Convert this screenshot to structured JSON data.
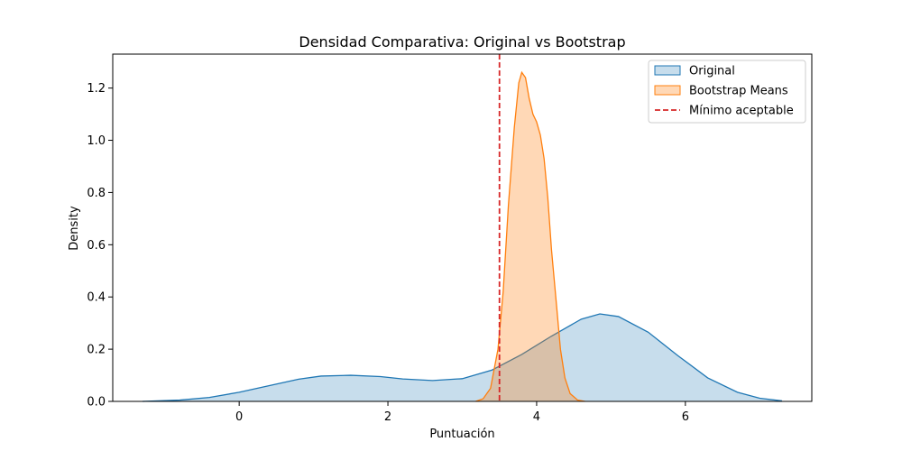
{
  "chart_data": {
    "type": "area",
    "title": "Densidad Comparativa: Original vs Bootstrap",
    "xlabel": "Puntuación",
    "ylabel": "Density",
    "xlim": [
      -1.7,
      7.7
    ],
    "ylim": [
      0,
      1.33
    ],
    "xticks": [
      0,
      2,
      4,
      6
    ],
    "yticks": [
      0.0,
      0.2,
      0.4,
      0.6,
      0.8,
      1.0,
      1.2
    ],
    "xtick_labels": [
      "0",
      "2",
      "4",
      "6"
    ],
    "ytick_labels": [
      "0.0",
      "0.2",
      "0.4",
      "0.6",
      "0.8",
      "1.0",
      "1.2"
    ],
    "grid": false,
    "legend_position": "top-right",
    "series": [
      {
        "name": "Original",
        "color": "#1f77b4",
        "fill_opacity": 0.25,
        "x": [
          -1.3,
          -0.8,
          -0.4,
          0.0,
          0.4,
          0.8,
          1.1,
          1.5,
          1.9,
          2.2,
          2.6,
          3.0,
          3.4,
          3.8,
          4.2,
          4.6,
          4.85,
          5.1,
          5.5,
          5.9,
          6.3,
          6.7,
          7.0,
          7.3
        ],
        "y": [
          0.0,
          0.005,
          0.015,
          0.035,
          0.06,
          0.085,
          0.097,
          0.1,
          0.095,
          0.086,
          0.08,
          0.087,
          0.12,
          0.18,
          0.25,
          0.315,
          0.335,
          0.325,
          0.265,
          0.175,
          0.09,
          0.035,
          0.012,
          0.002
        ]
      },
      {
        "name": "Bootstrap Means",
        "color": "#ff7f0e",
        "fill_opacity": 0.3,
        "x": [
          3.18,
          3.28,
          3.38,
          3.48,
          3.55,
          3.62,
          3.7,
          3.76,
          3.8,
          3.85,
          3.9,
          3.95,
          4.0,
          4.05,
          4.1,
          4.15,
          4.2,
          4.27,
          4.32,
          4.38,
          4.45,
          4.55,
          4.65
        ],
        "y": [
          0.0,
          0.01,
          0.05,
          0.2,
          0.42,
          0.75,
          1.05,
          1.22,
          1.26,
          1.24,
          1.16,
          1.1,
          1.07,
          1.02,
          0.93,
          0.78,
          0.58,
          0.36,
          0.2,
          0.09,
          0.03,
          0.005,
          0.0
        ]
      }
    ],
    "reference_line": {
      "name": "Mínimo aceptable",
      "x": 3.5,
      "color": "#d62728",
      "style": "dashed"
    }
  }
}
